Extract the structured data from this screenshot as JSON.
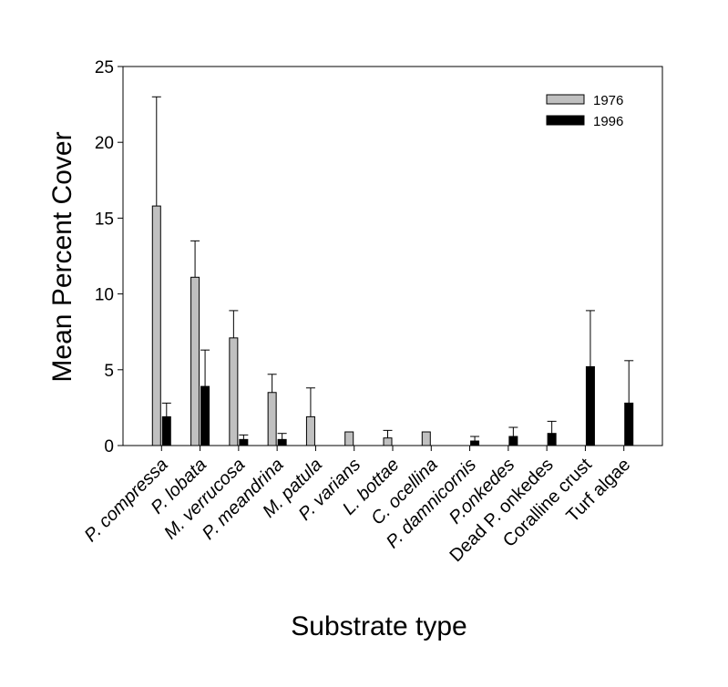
{
  "chart_data": {
    "type": "bar",
    "title": "",
    "xlabel": "Substrate type",
    "ylabel": "Mean Percent Cover",
    "ylim": [
      0,
      25
    ],
    "yticks": [
      0,
      5,
      10,
      15,
      20,
      25
    ],
    "grid": false,
    "legend_position": "top-right",
    "error_bars": "upper",
    "categories": [
      "P. compressa",
      "P. lobata",
      "M. verrucosa",
      "P. meandrina",
      "M. patula",
      "P. varians",
      "L. bottae",
      "C. ocellina",
      "P. damnicornis",
      "P.onkedes",
      "Dead P. onkedes",
      "Coralline crust",
      "Turf algae"
    ],
    "italic_categories": [
      true,
      true,
      true,
      true,
      true,
      true,
      true,
      true,
      true,
      true,
      false,
      false,
      false
    ],
    "series": [
      {
        "name": "1976",
        "color": "#c0c0c0",
        "values": [
          15.8,
          11.1,
          7.1,
          3.5,
          1.9,
          0.9,
          0.5,
          0.9,
          0,
          0,
          0,
          0,
          0
        ],
        "errors": [
          7.2,
          2.4,
          1.8,
          1.2,
          1.9,
          0,
          0.5,
          0,
          0,
          0,
          0,
          0,
          0
        ]
      },
      {
        "name": "1996",
        "color": "#000000",
        "values": [
          1.9,
          3.9,
          0.4,
          0.4,
          0,
          0,
          0,
          0,
          0.3,
          0.6,
          0.8,
          5.2,
          2.8
        ],
        "errors": [
          0.9,
          2.4,
          0.3,
          0.4,
          0,
          0,
          0,
          0,
          0.3,
          0.6,
          0.8,
          3.7,
          2.8
        ]
      }
    ]
  }
}
